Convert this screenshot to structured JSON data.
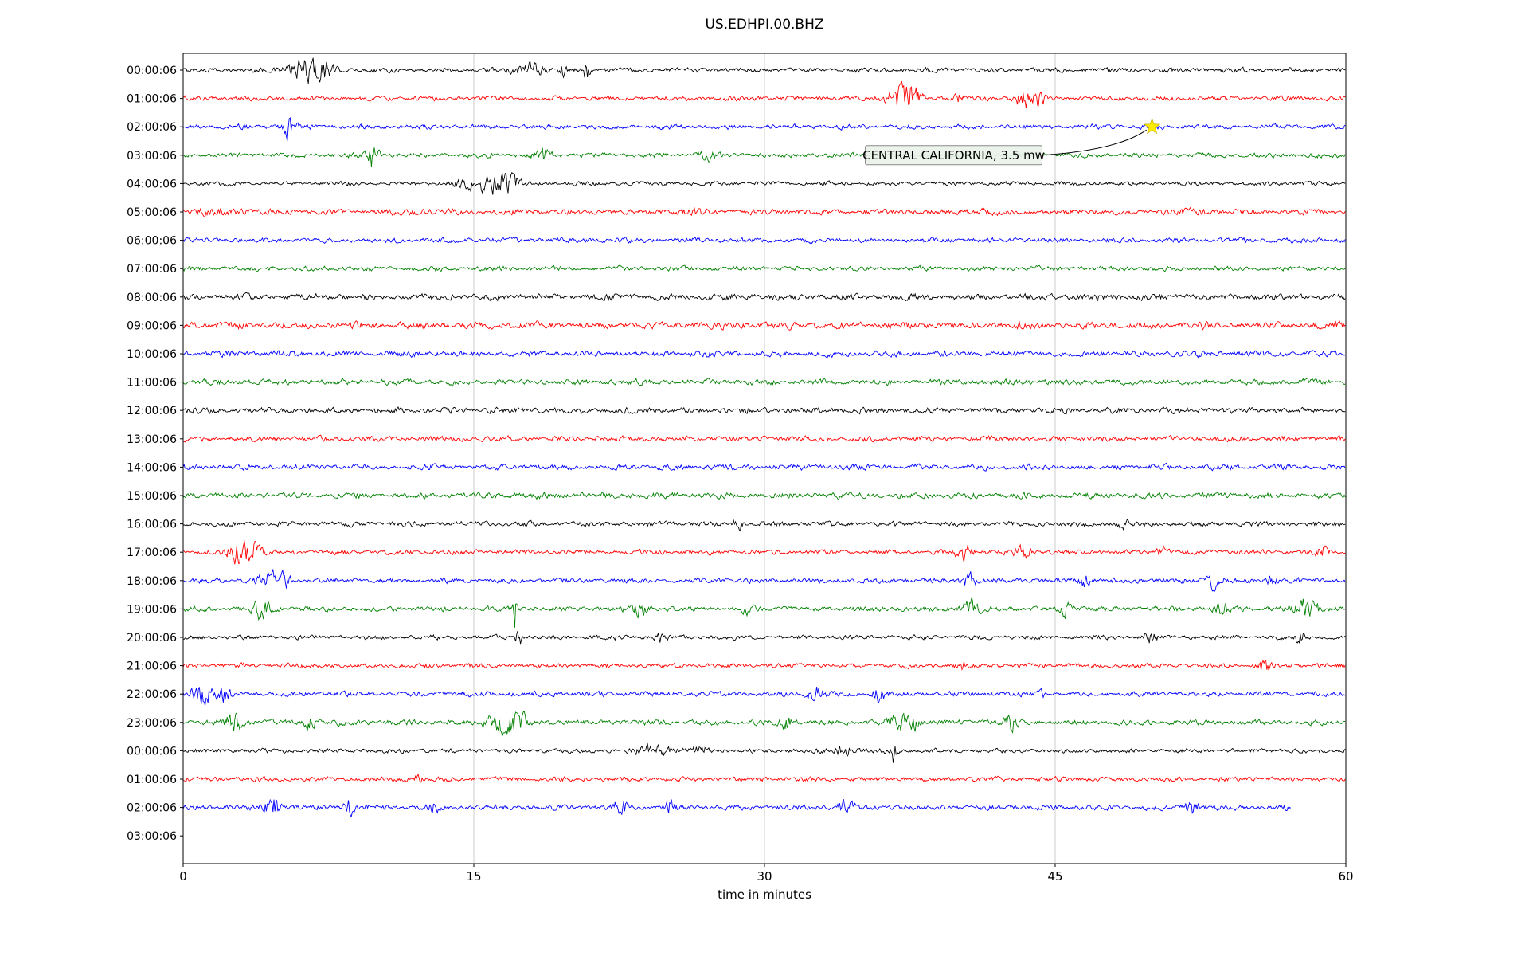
{
  "title": "US.EDHPI.00.BHZ",
  "annotation": {
    "text": "CENTRAL CALIFORNIA, 3.5 mw",
    "star_row": 2,
    "star_minute": 50.0,
    "box_row": 3,
    "box_start_minute": 35.2,
    "star_color": "#ffed00"
  },
  "chart_data": {
    "type": "line",
    "title": "US.EDHPI.00.BHZ",
    "xlabel": "time in minutes",
    "xlim": [
      0,
      60
    ],
    "xticks": [
      0,
      15,
      30,
      45,
      60
    ],
    "grid": "vertical",
    "colors_cycle": [
      "#000000",
      "#ff0000",
      "#0000ff",
      "#008000"
    ],
    "rows": [
      {
        "label": "00:00:06",
        "color": "#000000",
        "end": 60,
        "base": 1.0,
        "ev": [
          [
            6.3,
            0.9,
            5
          ],
          [
            7.3,
            0.5,
            3.5
          ],
          [
            17.9,
            0.7,
            3
          ],
          [
            19.6,
            0.25,
            2.5
          ],
          [
            20.8,
            0.18,
            5
          ]
        ]
      },
      {
        "label": "01:00:06",
        "color": "#ff0000",
        "end": 60,
        "base": 1.0,
        "ev": [
          [
            36.9,
            0.7,
            5
          ],
          [
            37.7,
            0.4,
            5.5
          ],
          [
            40.1,
            0.35,
            2.5
          ],
          [
            43.4,
            0.45,
            4.5
          ],
          [
            44.2,
            0.25,
            5.5
          ]
        ]
      },
      {
        "label": "02:00:06",
        "color": "#0000ff",
        "end": 60,
        "base": 1.0,
        "ev": [
          [
            5.4,
            0.35,
            5
          ]
        ]
      },
      {
        "label": "03:00:06",
        "color": "#008000",
        "end": 60,
        "base": 1.0,
        "ev": [
          [
            9.8,
            0.3,
            6.5
          ],
          [
            18.6,
            0.5,
            2.8
          ],
          [
            27.0,
            0.4,
            2.2
          ]
        ]
      },
      {
        "label": "04:00:06",
        "color": "#000000",
        "end": 60,
        "base": 0.9,
        "ev": [
          [
            15.1,
            0.9,
            3
          ],
          [
            16.2,
            0.5,
            5.5
          ],
          [
            16.9,
            0.5,
            4
          ]
        ]
      },
      {
        "label": "05:00:06",
        "color": "#ff0000",
        "end": 60,
        "base": 1.15,
        "ev": [
          [
            2,
            1.5,
            0.8
          ],
          [
            12,
            1.2,
            0.7
          ],
          [
            26,
            1.0,
            0.7
          ],
          [
            41,
            1.2,
            0.6
          ],
          [
            52,
            1.0,
            0.6
          ]
        ]
      },
      {
        "label": "06:00:06",
        "color": "#0000ff",
        "end": 60,
        "base": 1.05,
        "ev": []
      },
      {
        "label": "07:00:06",
        "color": "#008000",
        "end": 60,
        "base": 1.0,
        "ev": []
      },
      {
        "label": "08:00:06",
        "color": "#000000",
        "end": 60,
        "base": 1.35,
        "ev": []
      },
      {
        "label": "09:00:06",
        "color": "#ff0000",
        "end": 60,
        "base": 1.45,
        "ev": []
      },
      {
        "label": "10:00:06",
        "color": "#0000ff",
        "end": 60,
        "base": 1.25,
        "ev": []
      },
      {
        "label": "11:00:06",
        "color": "#008000",
        "end": 60,
        "base": 1.2,
        "ev": []
      },
      {
        "label": "12:00:06",
        "color": "#000000",
        "end": 60,
        "base": 1.25,
        "ev": []
      },
      {
        "label": "13:00:06",
        "color": "#ff0000",
        "end": 60,
        "base": 1.15,
        "ev": []
      },
      {
        "label": "14:00:06",
        "color": "#0000ff",
        "end": 60,
        "base": 1.2,
        "ev": []
      },
      {
        "label": "15:00:06",
        "color": "#008000",
        "end": 60,
        "base": 1.25,
        "ev": []
      },
      {
        "label": "16:00:06",
        "color": "#000000",
        "end": 60,
        "base": 1.05,
        "ev": [
          [
            28.6,
            0.25,
            2.8
          ],
          [
            48.5,
            0.3,
            2
          ]
        ]
      },
      {
        "label": "17:00:06",
        "color": "#ff0000",
        "end": 60,
        "base": 1.0,
        "ev": [
          [
            2.9,
            0.6,
            5.5
          ],
          [
            3.7,
            0.35,
            4
          ],
          [
            40.3,
            0.45,
            3.8
          ],
          [
            43.3,
            0.35,
            3.8
          ],
          [
            50.5,
            0.3,
            2.2
          ],
          [
            58.8,
            0.3,
            3
          ]
        ]
      },
      {
        "label": "18:00:06",
        "color": "#0000ff",
        "end": 60,
        "base": 1.05,
        "ev": [
          [
            4.4,
            0.6,
            4
          ],
          [
            5.3,
            0.3,
            3
          ],
          [
            40.5,
            0.35,
            4.2
          ],
          [
            46.6,
            0.35,
            3.2
          ],
          [
            53.3,
            0.5,
            4.2
          ],
          [
            56.2,
            0.25,
            2.6
          ]
        ]
      },
      {
        "label": "19:00:06",
        "color": "#008000",
        "end": 60,
        "base": 1.1,
        "ev": [
          [
            4.1,
            0.45,
            4.2
          ],
          [
            17.1,
            0.12,
            9
          ],
          [
            23.6,
            0.35,
            3.8
          ],
          [
            29.2,
            0.3,
            2.2
          ],
          [
            40.6,
            0.45,
            4.5
          ],
          [
            45.6,
            0.3,
            3.2
          ],
          [
            53.6,
            0.35,
            3
          ],
          [
            57.9,
            0.7,
            4.5
          ]
        ]
      },
      {
        "label": "20:00:06",
        "color": "#000000",
        "end": 60,
        "base": 0.95,
        "ev": [
          [
            17.3,
            0.1,
            10
          ],
          [
            24.6,
            0.3,
            2.2
          ],
          [
            49.9,
            0.35,
            2.8
          ],
          [
            57.6,
            0.2,
            5.5
          ]
        ]
      },
      {
        "label": "21:00:06",
        "color": "#ff0000",
        "end": 60,
        "base": 1.0,
        "ev": [
          [
            40.2,
            0.3,
            2
          ],
          [
            55.8,
            0.25,
            5.5
          ]
        ]
      },
      {
        "label": "22:00:06",
        "color": "#0000ff",
        "end": 60,
        "base": 1.05,
        "ev": [
          [
            1.0,
            0.7,
            4.5
          ],
          [
            2.1,
            0.3,
            3
          ],
          [
            32.6,
            0.45,
            3.8
          ],
          [
            35.9,
            0.35,
            3.5
          ],
          [
            44.2,
            0.25,
            2.2
          ]
        ]
      },
      {
        "label": "23:00:06",
        "color": "#008000",
        "end": 60,
        "base": 1.15,
        "ev": [
          [
            2.6,
            0.5,
            4.5
          ],
          [
            6.4,
            0.4,
            3.5
          ],
          [
            16.4,
            0.7,
            5
          ],
          [
            17.3,
            0.4,
            4.5
          ],
          [
            31.1,
            0.35,
            3.2
          ],
          [
            36.9,
            0.45,
            5
          ],
          [
            37.7,
            0.3,
            3.6
          ],
          [
            42.6,
            0.45,
            3.6
          ]
        ]
      },
      {
        "label": "00:00:06",
        "color": "#000000",
        "end": 60,
        "base": 0.95,
        "ev": [
          [
            24.4,
            0.8,
            2.6
          ],
          [
            26.6,
            0.4,
            2.2
          ],
          [
            34.1,
            0.5,
            2.2
          ],
          [
            36.6,
            0.22,
            6.5
          ]
        ]
      },
      {
        "label": "01:00:06",
        "color": "#ff0000",
        "end": 60,
        "base": 1.0,
        "ev": [
          [
            12,
            0.4,
            1.5
          ]
        ]
      },
      {
        "label": "02:00:06",
        "color": "#0000ff",
        "end": 57.2,
        "base": 1.1,
        "ev": [
          [
            4.6,
            0.4,
            5.5
          ],
          [
            8.6,
            0.3,
            3.5
          ],
          [
            12.9,
            0.3,
            2.5
          ],
          [
            22.6,
            0.35,
            3.5
          ],
          [
            25.1,
            0.3,
            3.2
          ],
          [
            34.2,
            0.4,
            3.2
          ],
          [
            52.1,
            0.4,
            3.5
          ]
        ]
      },
      {
        "label": "03:00:06",
        "color": "#008000",
        "end": 0,
        "base": 0,
        "ev": []
      }
    ]
  }
}
